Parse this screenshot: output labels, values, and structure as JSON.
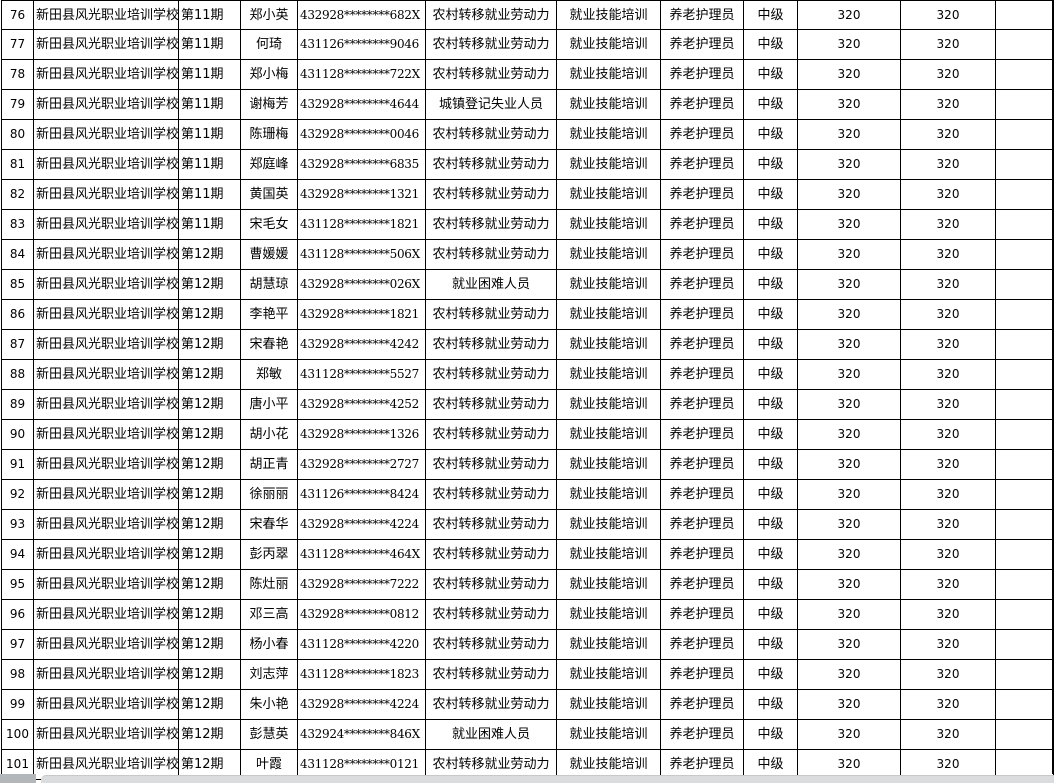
{
  "colors": {
    "gridline": "#000000",
    "cell_background": "#ffffff",
    "text": "#000000",
    "scroll_corner": "#b4b7b9",
    "scroll_track": "#dbdcdd"
  },
  "table": {
    "columns": [
      {
        "id": "row-index"
      },
      {
        "id": "school"
      },
      {
        "id": "session"
      },
      {
        "id": "trainee-name"
      },
      {
        "id": "id-number"
      },
      {
        "id": "person-category"
      },
      {
        "id": "training-type"
      },
      {
        "id": "occupation"
      },
      {
        "id": "level"
      },
      {
        "id": "amount-a"
      },
      {
        "id": "amount-b"
      },
      {
        "id": "blank"
      }
    ],
    "rows": [
      [
        "76",
        "新田县风光职业培训学校",
        "第11期",
        "郑小英",
        "432928********682X",
        "农村转移就业劳动力",
        "就业技能培训",
        "养老护理员",
        "中级",
        "320",
        "320",
        ""
      ],
      [
        "77",
        "新田县风光职业培训学校",
        "第11期",
        "何琦",
        "431126********9046",
        "农村转移就业劳动力",
        "就业技能培训",
        "养老护理员",
        "中级",
        "320",
        "320",
        ""
      ],
      [
        "78",
        "新田县风光职业培训学校",
        "第11期",
        "郑小梅",
        "431128********722X",
        "农村转移就业劳动力",
        "就业技能培训",
        "养老护理员",
        "中级",
        "320",
        "320",
        ""
      ],
      [
        "79",
        "新田县风光职业培训学校",
        "第11期",
        "谢梅芳",
        "432928********4644",
        "城镇登记失业人员",
        "就业技能培训",
        "养老护理员",
        "中级",
        "320",
        "320",
        ""
      ],
      [
        "80",
        "新田县风光职业培训学校",
        "第11期",
        "陈珊梅",
        "432928********0046",
        "农村转移就业劳动力",
        "就业技能培训",
        "养老护理员",
        "中级",
        "320",
        "320",
        ""
      ],
      [
        "81",
        "新田县风光职业培训学校",
        "第11期",
        "郑庭峰",
        "432928********6835",
        "农村转移就业劳动力",
        "就业技能培训",
        "养老护理员",
        "中级",
        "320",
        "320",
        ""
      ],
      [
        "82",
        "新田县风光职业培训学校",
        "第11期",
        "黄国英",
        "432928********1321",
        "农村转移就业劳动力",
        "就业技能培训",
        "养老护理员",
        "中级",
        "320",
        "320",
        ""
      ],
      [
        "83",
        "新田县风光职业培训学校",
        "第11期",
        "宋毛女",
        "431128********1821",
        "农村转移就业劳动力",
        "就业技能培训",
        "养老护理员",
        "中级",
        "320",
        "320",
        ""
      ],
      [
        "84",
        "新田县风光职业培训学校",
        "第12期",
        "曹媛媛",
        "431128********506X",
        "农村转移就业劳动力",
        "就业技能培训",
        "养老护理员",
        "中级",
        "320",
        "320",
        ""
      ],
      [
        "85",
        "新田县风光职业培训学校",
        "第12期",
        "胡慧琼",
        "432928********026X",
        "就业困难人员",
        "就业技能培训",
        "养老护理员",
        "中级",
        "320",
        "320",
        ""
      ],
      [
        "86",
        "新田县风光职业培训学校",
        "第12期",
        "李艳平",
        "432928********1821",
        "农村转移就业劳动力",
        "就业技能培训",
        "养老护理员",
        "中级",
        "320",
        "320",
        ""
      ],
      [
        "87",
        "新田县风光职业培训学校",
        "第12期",
        "宋春艳",
        "432928********4242",
        "农村转移就业劳动力",
        "就业技能培训",
        "养老护理员",
        "中级",
        "320",
        "320",
        ""
      ],
      [
        "88",
        "新田县风光职业培训学校",
        "第12期",
        "郑敏",
        "431128********5527",
        "农村转移就业劳动力",
        "就业技能培训",
        "养老护理员",
        "中级",
        "320",
        "320",
        ""
      ],
      [
        "89",
        "新田县风光职业培训学校",
        "第12期",
        "唐小平",
        "432928********4252",
        "农村转移就业劳动力",
        "就业技能培训",
        "养老护理员",
        "中级",
        "320",
        "320",
        ""
      ],
      [
        "90",
        "新田县风光职业培训学校",
        "第12期",
        "胡小花",
        "432928********1326",
        "农村转移就业劳动力",
        "就业技能培训",
        "养老护理员",
        "中级",
        "320",
        "320",
        ""
      ],
      [
        "91",
        "新田县风光职业培训学校",
        "第12期",
        "胡正青",
        "432928********2727",
        "农村转移就业劳动力",
        "就业技能培训",
        "养老护理员",
        "中级",
        "320",
        "320",
        ""
      ],
      [
        "92",
        "新田县风光职业培训学校",
        "第12期",
        "徐丽丽",
        "431126********8424",
        "农村转移就业劳动力",
        "就业技能培训",
        "养老护理员",
        "中级",
        "320",
        "320",
        ""
      ],
      [
        "93",
        "新田县风光职业培训学校",
        "第12期",
        "宋春华",
        "432928********4224",
        "农村转移就业劳动力",
        "就业技能培训",
        "养老护理员",
        "中级",
        "320",
        "320",
        ""
      ],
      [
        "94",
        "新田县风光职业培训学校",
        "第12期",
        "彭丙翠",
        "431128********464X",
        "农村转移就业劳动力",
        "就业技能培训",
        "养老护理员",
        "中级",
        "320",
        "320",
        ""
      ],
      [
        "95",
        "新田县风光职业培训学校",
        "第12期",
        "陈灶丽",
        "432928********7222",
        "农村转移就业劳动力",
        "就业技能培训",
        "养老护理员",
        "中级",
        "320",
        "320",
        ""
      ],
      [
        "96",
        "新田县风光职业培训学校",
        "第12期",
        "邓三高",
        "432928********0812",
        "农村转移就业劳动力",
        "就业技能培训",
        "养老护理员",
        "中级",
        "320",
        "320",
        ""
      ],
      [
        "97",
        "新田县风光职业培训学校",
        "第12期",
        "杨小春",
        "431128********4220",
        "农村转移就业劳动力",
        "就业技能培训",
        "养老护理员",
        "中级",
        "320",
        "320",
        ""
      ],
      [
        "98",
        "新田县风光职业培训学校",
        "第12期",
        "刘志萍",
        "431128********1823",
        "农村转移就业劳动力",
        "就业技能培训",
        "养老护理员",
        "中级",
        "320",
        "320",
        ""
      ],
      [
        "99",
        "新田县风光职业培训学校",
        "第12期",
        "朱小艳",
        "432928********4224",
        "农村转移就业劳动力",
        "就业技能培训",
        "养老护理员",
        "中级",
        "320",
        "320",
        ""
      ],
      [
        "100",
        "新田县风光职业培训学校",
        "第12期",
        "彭慧英",
        "432924********846X",
        "就业困难人员",
        "就业技能培训",
        "养老护理员",
        "中级",
        "320",
        "320",
        ""
      ],
      [
        "101",
        "新田县风光职业培训学校",
        "第12期",
        "叶霞",
        "431128********0121",
        "农村转移就业劳动力",
        "就业技能培训",
        "养老护理员",
        "中级",
        "320",
        "320",
        ""
      ]
    ]
  }
}
